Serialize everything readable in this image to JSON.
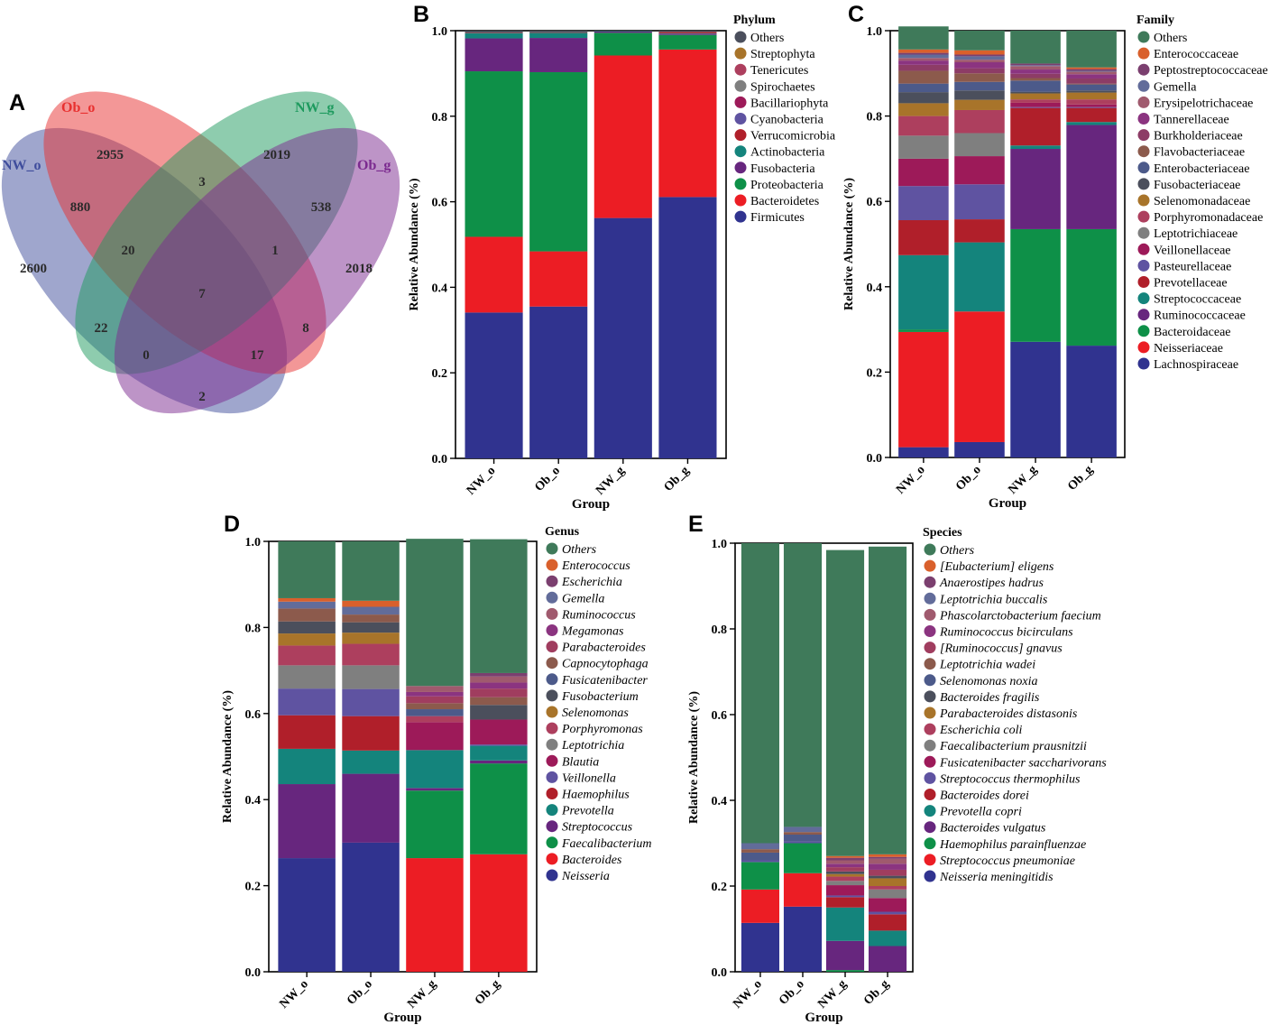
{
  "venn": {
    "letter": "A",
    "sets": [
      {
        "name": "NW_o",
        "color": "#3f4d9c"
      },
      {
        "name": "Ob_o",
        "color": "#e8302f"
      },
      {
        "name": "NW_g",
        "color": "#1e9a5e"
      },
      {
        "name": "Ob_g",
        "color": "#7b2a8f"
      }
    ],
    "counts": {
      "nw_o_only": "2600",
      "ob_o_only": "2955",
      "nw_g_only": "2019",
      "ob_g_only": "2018",
      "nw_o_ob_o": "880",
      "ob_o_nw_g": "3",
      "nw_g_ob_g": "538",
      "nw_o_ob_o_nw_g": "20",
      "ob_o_nw_g_ob_g": "1",
      "all_four": "7",
      "nw_o_nw_g": "22",
      "nw_o_nw_g_ob_g": "0",
      "nw_o_ob_o_ob_g": "17",
      "ob_o_ob_g": "8",
      "nw_o_ob_g": "2"
    }
  },
  "chart_data": [
    {
      "panel": "B",
      "type": "bar",
      "stacked": true,
      "categories": [
        "NW_o",
        "Ob_o",
        "NW_g",
        "Ob_g"
      ],
      "xlabel": "Group",
      "ylabel": "Relative Abundance (%)",
      "ylim": [
        0,
        1
      ],
      "yticks": [
        "0.0",
        "0.2",
        "0.4",
        "0.6",
        "0.8",
        "1.0"
      ],
      "legend_title": "Phylum",
      "italic_legend": false,
      "series": [
        {
          "name": "Firmicutes",
          "color": "#30338f",
          "values": [
            0.341,
            0.355,
            0.562,
            0.611
          ]
        },
        {
          "name": "Bacteroidetes",
          "color": "#ec1d24",
          "values": [
            0.177,
            0.129,
            0.38,
            0.345
          ]
        },
        {
          "name": "Proteobacteria",
          "color": "#0e9048",
          "values": [
            0.387,
            0.419,
            0.053,
            0.034
          ]
        },
        {
          "name": "Fusobacteria",
          "color": "#67267e",
          "values": [
            0.077,
            0.08,
            0.003,
            0.003
          ]
        },
        {
          "name": "Actinobacteria",
          "color": "#14847c",
          "values": [
            0.012,
            0.012,
            0.001,
            0.001
          ]
        },
        {
          "name": "Verrucomicrobia",
          "color": "#b01f2a",
          "values": [
            0.001,
            0.001,
            0.0,
            0.003
          ]
        },
        {
          "name": "Cyanobacteria",
          "color": "#5f53a1",
          "values": [
            0.0,
            0.0,
            0.0,
            0.0
          ]
        },
        {
          "name": "Bacillariophyta",
          "color": "#9d1a59",
          "values": [
            0.0,
            0.0,
            0.0,
            0.0
          ]
        },
        {
          "name": "Spirochaetes",
          "color": "#7f7f7f",
          "values": [
            0.0,
            0.0,
            0.0,
            0.0
          ]
        },
        {
          "name": "Tenericutes",
          "color": "#ad3f5e",
          "values": [
            0.0,
            0.0,
            0.0,
            0.0
          ]
        },
        {
          "name": "Streptophyta",
          "color": "#a8742a",
          "values": [
            0.0,
            0.0,
            0.0,
            0.0
          ]
        },
        {
          "name": "Others",
          "color": "#4b4f5c",
          "values": [
            0.005,
            0.004,
            0.001,
            0.003
          ]
        }
      ]
    },
    {
      "panel": "C",
      "type": "bar",
      "stacked": true,
      "categories": [
        "NW_o",
        "Ob_o",
        "NW_g",
        "Ob_g"
      ],
      "xlabel": "Group",
      "ylabel": "Relative Abundance (%)",
      "ylim": [
        0,
        1
      ],
      "yticks": [
        "0.0",
        "0.2",
        "0.4",
        "0.6",
        "0.8",
        "1.0"
      ],
      "legend_title": "Family",
      "italic_legend": false,
      "series": [
        {
          "name": "Lachnospiraceae",
          "color": "#30338f",
          "values": [
            0.024,
            0.036,
            0.271,
            0.262
          ]
        },
        {
          "name": "Neisseriaceae",
          "color": "#ec1d24",
          "values": [
            0.27,
            0.306,
            0.0,
            0.0
          ]
        },
        {
          "name": "Bacteroidaceae",
          "color": "#0e9048",
          "values": [
            0.006,
            0.0,
            0.264,
            0.273
          ]
        },
        {
          "name": "Ruminococcaceae",
          "color": "#67267e",
          "values": [
            0.0,
            0.0,
            0.188,
            0.244
          ]
        },
        {
          "name": "Streptococcaceae",
          "color": "#14847c",
          "values": [
            0.174,
            0.162,
            0.008,
            0.007
          ]
        },
        {
          "name": "Prevotellaceae",
          "color": "#b01f2a",
          "values": [
            0.082,
            0.054,
            0.088,
            0.033
          ]
        },
        {
          "name": "Pasteurellaceae",
          "color": "#5f53a1",
          "values": [
            0.08,
            0.082,
            0.002,
            0.002
          ]
        },
        {
          "name": "Veillonellaceae",
          "color": "#9d1a59",
          "values": [
            0.064,
            0.066,
            0.01,
            0.006
          ]
        },
        {
          "name": "Leptotrichiaceae",
          "color": "#7f7f7f",
          "values": [
            0.054,
            0.054,
            0.0,
            0.0
          ]
        },
        {
          "name": "Porphyromonadaceae",
          "color": "#ad3f5e",
          "values": [
            0.046,
            0.054,
            0.008,
            0.012
          ]
        },
        {
          "name": "Selenomonadaceae",
          "color": "#a8742a",
          "values": [
            0.03,
            0.024,
            0.014,
            0.016
          ]
        },
        {
          "name": "Fusobacteriaceae",
          "color": "#4b4f5c",
          "values": [
            0.026,
            0.022,
            0.004,
            0.005
          ]
        },
        {
          "name": "Enterobacteriaceae",
          "color": "#4c5a8a",
          "values": [
            0.02,
            0.02,
            0.026,
            0.014
          ]
        },
        {
          "name": "Flavobacteriaceae",
          "color": "#8c5a4c",
          "values": [
            0.03,
            0.02,
            0.006,
            0.002
          ]
        },
        {
          "name": "Burkholderiaceae",
          "color": "#8d3c66",
          "values": [
            0.014,
            0.012,
            0.01,
            0.012
          ]
        },
        {
          "name": "Tannerellaceae",
          "color": "#8b3480",
          "values": [
            0.01,
            0.014,
            0.01,
            0.01
          ]
        },
        {
          "name": "Erysipelotrichaceae",
          "color": "#a05a6e",
          "values": [
            0.006,
            0.006,
            0.008,
            0.006
          ]
        },
        {
          "name": "Gemella",
          "color": "#626c9a",
          "values": [
            0.008,
            0.008,
            0.002,
            0.002
          ]
        },
        {
          "name": "Peptostreptococcaceae",
          "color": "#7b3f6f",
          "values": [
            0.004,
            0.004,
            0.004,
            0.004
          ]
        },
        {
          "name": "Enterococcaceae",
          "color": "#d9602c",
          "values": [
            0.008,
            0.01,
            0.0,
            0.004
          ]
        },
        {
          "name": "Others",
          "color": "#3f7a5a",
          "values": [
            0.054,
            0.046,
            0.077,
            0.086
          ]
        }
      ]
    },
    {
      "panel": "D",
      "type": "bar",
      "stacked": true,
      "categories": [
        "NW_o",
        "Ob_o",
        "NW_g",
        "Ob_g"
      ],
      "xlabel": "Group",
      "ylabel": "Relative Abundance (%)",
      "ylim": [
        0,
        1
      ],
      "yticks": [
        "0.0",
        "0.2",
        "0.4",
        "0.6",
        "0.8",
        "1.0"
      ],
      "legend_title": "Genus",
      "italic_legend": true,
      "series": [
        {
          "name": "Neisseria",
          "color": "#30338f",
          "values": [
            0.264,
            0.3,
            0.0,
            0.0
          ]
        },
        {
          "name": "Bacteroides",
          "color": "#ec1d24",
          "values": [
            0.0,
            0.0,
            0.264,
            0.273
          ]
        },
        {
          "name": "Faecalibacterium",
          "color": "#0e9048",
          "values": [
            0.0,
            0.0,
            0.157,
            0.211
          ]
        },
        {
          "name": "Streptococcus",
          "color": "#67267e",
          "values": [
            0.172,
            0.16,
            0.006,
            0.007
          ]
        },
        {
          "name": "Prevotella",
          "color": "#14847c",
          "values": [
            0.082,
            0.054,
            0.088,
            0.034
          ]
        },
        {
          "name": "Haemophilus",
          "color": "#b01f2a",
          "values": [
            0.078,
            0.08,
            0.0,
            0.0
          ]
        },
        {
          "name": "Veillonella",
          "color": "#5f53a1",
          "values": [
            0.062,
            0.063,
            0.0,
            0.003
          ]
        },
        {
          "name": "Blautia",
          "color": "#9d1a59",
          "values": [
            0.0,
            0.0,
            0.065,
            0.058
          ]
        },
        {
          "name": "Leptotrichia",
          "color": "#7f7f7f",
          "values": [
            0.054,
            0.055,
            0.0,
            0.0
          ]
        },
        {
          "name": "Porphyromonas",
          "color": "#ad3f5e",
          "values": [
            0.046,
            0.05,
            0.014,
            0.0
          ]
        },
        {
          "name": "Selenomonas",
          "color": "#a8742a",
          "values": [
            0.028,
            0.026,
            0.0,
            0.0
          ]
        },
        {
          "name": "Fusobacterium",
          "color": "#4b4f5c",
          "values": [
            0.028,
            0.024,
            0.0,
            0.034
          ]
        },
        {
          "name": "Fusicatenibacter",
          "color": "#4c5a8a",
          "values": [
            0.0,
            0.0,
            0.016,
            0.0
          ]
        },
        {
          "name": "Capnocytophaga",
          "color": "#8c5a4c",
          "values": [
            0.03,
            0.018,
            0.014,
            0.018
          ]
        },
        {
          "name": "Parabacteroides",
          "color": "#a03d5f",
          "values": [
            0.0,
            0.0,
            0.016,
            0.02
          ]
        },
        {
          "name": "Megamonas",
          "color": "#8b3480",
          "values": [
            0.0,
            0.0,
            0.01,
            0.014
          ]
        },
        {
          "name": "Ruminococcus",
          "color": "#a05a6e",
          "values": [
            0.0,
            0.0,
            0.014,
            0.014
          ]
        },
        {
          "name": "Gemella",
          "color": "#626c9a",
          "values": [
            0.016,
            0.018,
            0.0,
            0.0
          ]
        },
        {
          "name": "Escherichia",
          "color": "#7b3f6f",
          "values": [
            0.0,
            0.0,
            0.0,
            0.008
          ]
        },
        {
          "name": "Enterococcus",
          "color": "#d9602c",
          "values": [
            0.008,
            0.014,
            0.0,
            0.0
          ]
        },
        {
          "name": "Others",
          "color": "#3f7a5a",
          "values": [
            0.132,
            0.138,
            0.342,
            0.311
          ]
        }
      ]
    },
    {
      "panel": "E",
      "type": "bar",
      "stacked": true,
      "categories": [
        "NW_o",
        "Ob_o",
        "NW_g",
        "Ob_g"
      ],
      "xlabel": "Group",
      "ylabel": "Relative Abundance (%)",
      "ylim": [
        0,
        1
      ],
      "yticks": [
        "0.0",
        "0.2",
        "0.4",
        "0.6",
        "0.8",
        "1.0"
      ],
      "legend_title": "Species",
      "italic_legend": true,
      "series": [
        {
          "name": "Neisseria meningitidis",
          "color": "#30338f",
          "values": [
            0.114,
            0.152,
            0.0,
            0.0
          ]
        },
        {
          "name": "Streptococcus pneumoniae",
          "color": "#ec1d24",
          "values": [
            0.078,
            0.078,
            0.0,
            0.0
          ]
        },
        {
          "name": "Haemophilus parainfluenzae",
          "color": "#0e9048",
          "values": [
            0.064,
            0.07,
            0.004,
            0.0
          ]
        },
        {
          "name": "Bacteroides vulgatus",
          "color": "#67267e",
          "values": [
            0.0,
            0.0,
            0.068,
            0.06
          ]
        },
        {
          "name": "Prevotella copri",
          "color": "#14847c",
          "values": [
            0.0,
            0.0,
            0.078,
            0.036
          ]
        },
        {
          "name": "Bacteroides dorei",
          "color": "#b01f2a",
          "values": [
            0.0,
            0.0,
            0.024,
            0.038
          ]
        },
        {
          "name": "Streptococcus thermophilus",
          "color": "#5f53a1",
          "values": [
            0.004,
            0.004,
            0.004,
            0.006
          ]
        },
        {
          "name": "Fusicatenibacter saccharivorans",
          "color": "#9d1a59",
          "values": [
            0.0,
            0.0,
            0.024,
            0.032
          ]
        },
        {
          "name": "Faecalibacterium prausnitzii",
          "color": "#7f7f7f",
          "values": [
            0.0,
            0.0,
            0.01,
            0.02
          ]
        },
        {
          "name": "Escherichia coli",
          "color": "#ad3f5e",
          "values": [
            0.0,
            0.0,
            0.01,
            0.008
          ]
        },
        {
          "name": "Parabacteroides distasonis",
          "color": "#a8742a",
          "values": [
            0.0,
            0.0,
            0.006,
            0.018
          ]
        },
        {
          "name": "Bacteroides fragilis",
          "color": "#4b4f5c",
          "values": [
            0.0,
            0.0,
            0.006,
            0.006
          ]
        },
        {
          "name": "Selenomonas noxia",
          "color": "#4c5a8a",
          "values": [
            0.018,
            0.016,
            0.0,
            0.0
          ]
        },
        {
          "name": "Leptotrichia wadei",
          "color": "#8c5a4c",
          "values": [
            0.008,
            0.006,
            0.0,
            0.0
          ]
        },
        {
          "name": "[Ruminococcus] gnavus",
          "color": "#a03d5f",
          "values": [
            0.0,
            0.0,
            0.01,
            0.014
          ]
        },
        {
          "name": "Ruminococcus bicirculans",
          "color": "#8b3480",
          "values": [
            0.0,
            0.0,
            0.008,
            0.014
          ]
        },
        {
          "name": "Phascolarctobacterium faecium",
          "color": "#a05a6e",
          "values": [
            0.0,
            0.0,
            0.008,
            0.012
          ]
        },
        {
          "name": "Leptotrichia buccalis",
          "color": "#626c9a",
          "values": [
            0.014,
            0.012,
            0.0,
            0.0
          ]
        },
        {
          "name": "Anaerostipes hadrus",
          "color": "#7b3f6f",
          "values": [
            0.0,
            0.0,
            0.006,
            0.004
          ]
        },
        {
          "name": "[Eubacterium] eligens",
          "color": "#d9602c",
          "values": [
            0.0,
            0.0,
            0.004,
            0.006
          ]
        },
        {
          "name": "Others",
          "color": "#3f7a5a",
          "values": [
            0.7,
            0.662,
            0.714,
            0.718
          ]
        }
      ]
    }
  ]
}
